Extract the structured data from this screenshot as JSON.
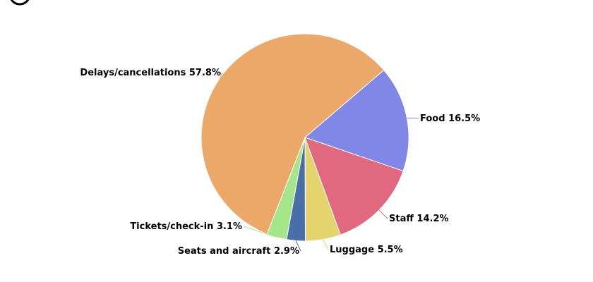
{
  "chart_data": {
    "type": "pie",
    "categories": [
      "Delays/cancellations",
      "Food",
      "Staff",
      "Luggage",
      "Seats and aircraft",
      "Tickets/check-in"
    ],
    "values": [
      57.8,
      16.5,
      14.2,
      5.5,
      2.9,
      3.1
    ],
    "value_labels": [
      "57.8%",
      "16.5%",
      "14.2%",
      "5.5%",
      "2.9%",
      "3.1%"
    ],
    "colors": [
      "#eba868",
      "#8087e6",
      "#e2687f",
      "#e3d46d",
      "#4a6fa8",
      "#a6e68a"
    ]
  }
}
